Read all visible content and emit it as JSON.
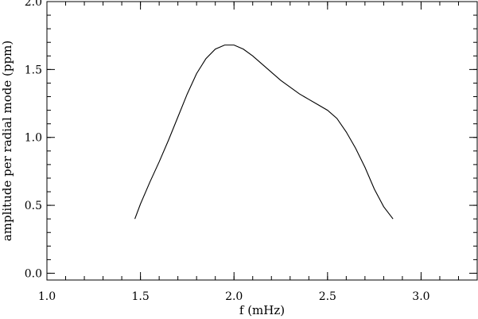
{
  "chart_data": {
    "type": "line",
    "title": "",
    "xlabel": "f (mHz)",
    "ylabel": "amplitude per radial mode (ppm)",
    "xlim": [
      1.0,
      3.3
    ],
    "ylim": [
      -0.05,
      2.0
    ],
    "grid": false,
    "x_major_ticks": [
      1.0,
      1.5,
      2.0,
      2.5,
      3.0
    ],
    "x_tick_labels": [
      "1.0",
      "1.5",
      "2.0",
      "2.5",
      "3.0"
    ],
    "x_minor_step": 0.1,
    "y_major_ticks": [
      0.0,
      0.5,
      1.0,
      1.5,
      2.0
    ],
    "y_tick_labels": [
      "0.0",
      "0.5",
      "1.0",
      "1.5",
      "2.0"
    ],
    "y_minor_step": 0.1,
    "series": [
      {
        "color": "#000000",
        "x": [
          1.47,
          1.5,
          1.55,
          1.6,
          1.65,
          1.7,
          1.75,
          1.8,
          1.85,
          1.9,
          1.95,
          2.0,
          2.05,
          2.1,
          2.15,
          2.2,
          2.25,
          2.3,
          2.35,
          2.4,
          2.45,
          2.5,
          2.55,
          2.6,
          2.65,
          2.7,
          2.75,
          2.8,
          2.85
        ],
        "y": [
          0.4,
          0.51,
          0.67,
          0.82,
          0.98,
          1.15,
          1.32,
          1.47,
          1.58,
          1.65,
          1.68,
          1.68,
          1.65,
          1.6,
          1.54,
          1.48,
          1.42,
          1.37,
          1.32,
          1.28,
          1.24,
          1.2,
          1.14,
          1.04,
          0.92,
          0.78,
          0.62,
          0.49,
          0.4
        ]
      }
    ]
  }
}
